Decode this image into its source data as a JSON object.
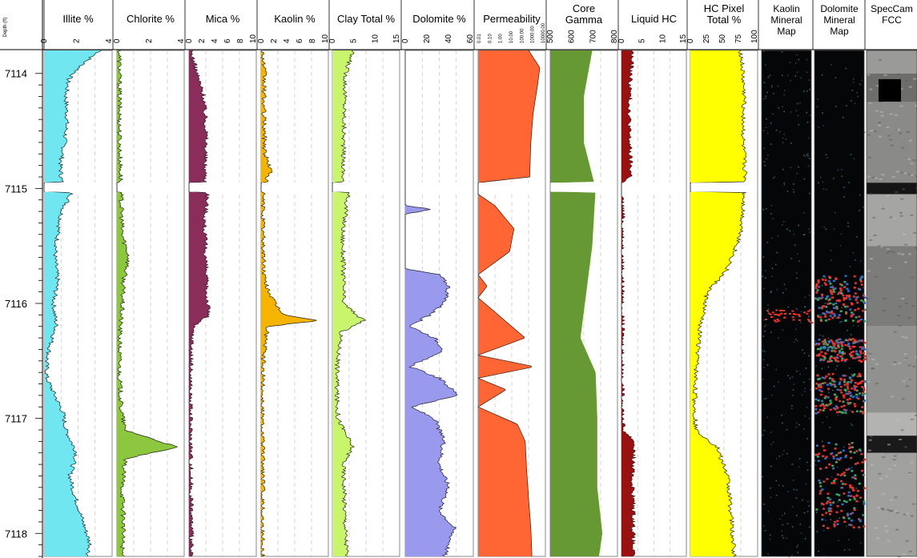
{
  "depth_axis": {
    "label": "Depth (ft)",
    "ticks": [
      7114,
      7115,
      7116,
      7117,
      7118
    ],
    "range": [
      7113.8,
      7118.2
    ],
    "gap": [
      7114.95,
      7115.03
    ]
  },
  "tracks": [
    {
      "id": "illite",
      "title": [
        "Illite %"
      ],
      "ticks": [
        "0",
        "2",
        "4"
      ],
      "range": [
        0,
        5
      ],
      "fill": "#6fe6f0",
      "profile": [
        [
          7113.8,
          4.2
        ],
        [
          7113.9,
          3.0
        ],
        [
          7114.05,
          1.8
        ],
        [
          7114.2,
          1.6
        ],
        [
          7114.4,
          1.7
        ],
        [
          7114.6,
          1.5
        ],
        [
          7114.8,
          1.2
        ],
        [
          7114.95,
          1.3
        ],
        [
          7115.05,
          2.0
        ],
        [
          7115.2,
          1.3
        ],
        [
          7115.4,
          1.0
        ],
        [
          7115.6,
          0.8
        ],
        [
          7115.8,
          1.0
        ],
        [
          7116.0,
          0.7
        ],
        [
          7116.2,
          0.9
        ],
        [
          7116.35,
          0.5
        ],
        [
          7116.5,
          0.2
        ],
        [
          7116.65,
          0.2
        ],
        [
          7116.8,
          0.8
        ],
        [
          7116.95,
          1.4
        ],
        [
          7117.1,
          1.6
        ],
        [
          7117.3,
          2.4
        ],
        [
          7117.5,
          1.9
        ],
        [
          7117.65,
          2.2
        ],
        [
          7117.8,
          2.6
        ],
        [
          7117.95,
          3.0
        ],
        [
          7118.1,
          3.4
        ],
        [
          7118.2,
          3.2
        ]
      ]
    },
    {
      "id": "chlorite",
      "title": [
        "Chlorite %"
      ],
      "ticks": [
        "0",
        "2",
        "4"
      ],
      "range": [
        0,
        5
      ],
      "fill": "#8dc63f",
      "profile": [
        [
          7113.8,
          0.2
        ],
        [
          7114.2,
          0.2
        ],
        [
          7114.6,
          0.2
        ],
        [
          7114.95,
          0.3
        ],
        [
          7115.05,
          0.3
        ],
        [
          7115.4,
          0.4
        ],
        [
          7115.6,
          0.9
        ],
        [
          7115.8,
          0.5
        ],
        [
          7116.0,
          0.4
        ],
        [
          7116.3,
          0.2
        ],
        [
          7116.6,
          0.2
        ],
        [
          7116.9,
          0.3
        ],
        [
          7117.1,
          0.6
        ],
        [
          7117.25,
          4.5
        ],
        [
          7117.35,
          0.6
        ],
        [
          7117.6,
          0.4
        ],
        [
          7117.9,
          0.5
        ],
        [
          7118.2,
          0.4
        ]
      ]
    },
    {
      "id": "mica",
      "title": [
        "Mica %"
      ],
      "ticks": [
        "0",
        "2",
        "4",
        "6",
        "8",
        "10"
      ],
      "range": [
        0,
        10
      ],
      "fill": "#8b2d5a",
      "profile": [
        [
          7113.8,
          0.3
        ],
        [
          7114.0,
          1.2
        ],
        [
          7114.2,
          2.2
        ],
        [
          7114.5,
          2.6
        ],
        [
          7114.8,
          2.4
        ],
        [
          7114.95,
          2.5
        ],
        [
          7115.05,
          2.8
        ],
        [
          7115.3,
          2.3
        ],
        [
          7115.6,
          2.5
        ],
        [
          7115.9,
          2.6
        ],
        [
          7116.1,
          3.0
        ],
        [
          7116.2,
          0.6
        ],
        [
          7116.5,
          0.3
        ],
        [
          7116.9,
          0.2
        ],
        [
          7117.2,
          0.3
        ],
        [
          7117.5,
          0.3
        ],
        [
          7117.9,
          0.4
        ],
        [
          7118.2,
          0.3
        ]
      ]
    },
    {
      "id": "kaolin",
      "title": [
        "Kaolin %"
      ],
      "ticks": [
        "0",
        "2",
        "4",
        "6",
        "8",
        "10"
      ],
      "range": [
        0,
        10
      ],
      "fill": "#f5b400",
      "profile": [
        [
          7113.8,
          0.2
        ],
        [
          7114.0,
          0.5
        ],
        [
          7114.3,
          0.4
        ],
        [
          7114.7,
          0.6
        ],
        [
          7114.85,
          1.5
        ],
        [
          7114.95,
          0.6
        ],
        [
          7115.05,
          0.3
        ],
        [
          7115.4,
          0.3
        ],
        [
          7115.8,
          0.5
        ],
        [
          7116.0,
          2.0
        ],
        [
          7116.1,
          3.5
        ],
        [
          7116.15,
          8.5
        ],
        [
          7116.2,
          1.0
        ],
        [
          7116.5,
          0.3
        ],
        [
          7117.0,
          0.2
        ],
        [
          7117.5,
          0.3
        ],
        [
          7118.2,
          0.2
        ]
      ]
    },
    {
      "id": "clay_total",
      "title": [
        "Clay Total %"
      ],
      "ticks": [
        "0",
        "5",
        "10",
        "15"
      ],
      "range": [
        0,
        15
      ],
      "fill": "#c8f56b",
      "profile": [
        [
          7113.8,
          4.5
        ],
        [
          7114.0,
          3.0
        ],
        [
          7114.3,
          2.7
        ],
        [
          7114.6,
          2.5
        ],
        [
          7114.95,
          2.4
        ],
        [
          7115.05,
          3.5
        ],
        [
          7115.4,
          2.3
        ],
        [
          7115.7,
          2.5
        ],
        [
          7116.0,
          2.5
        ],
        [
          7116.15,
          7.0
        ],
        [
          7116.25,
          2.0
        ],
        [
          7116.5,
          1.2
        ],
        [
          7116.8,
          1.0
        ],
        [
          7117.0,
          1.3
        ],
        [
          7117.25,
          4.5
        ],
        [
          7117.4,
          2.5
        ],
        [
          7117.7,
          2.7
        ],
        [
          7118.0,
          3.0
        ],
        [
          7118.2,
          3.3
        ]
      ]
    },
    {
      "id": "dolomite",
      "title": [
        "Dolomite %"
      ],
      "ticks": [
        "0",
        "20",
        "40",
        "60"
      ],
      "range": [
        0,
        70
      ],
      "fill": "#9999ee",
      "profile": [
        [
          7113.8,
          0
        ],
        [
          7115.15,
          0
        ],
        [
          7115.18,
          30
        ],
        [
          7115.22,
          0
        ],
        [
          7115.7,
          0
        ],
        [
          7115.75,
          35
        ],
        [
          7115.85,
          45
        ],
        [
          7116.0,
          40
        ],
        [
          7116.1,
          25
        ],
        [
          7116.2,
          5
        ],
        [
          7116.3,
          30
        ],
        [
          7116.4,
          40
        ],
        [
          7116.55,
          5
        ],
        [
          7116.65,
          35
        ],
        [
          7116.8,
          55
        ],
        [
          7116.9,
          5
        ],
        [
          7117.0,
          30
        ],
        [
          7117.2,
          40
        ],
        [
          7117.4,
          35
        ],
        [
          7117.6,
          45
        ],
        [
          7117.8,
          35
        ],
        [
          7117.95,
          50
        ],
        [
          7118.1,
          45
        ],
        [
          7118.2,
          40
        ]
      ]
    },
    {
      "id": "permeability",
      "title": [
        "Permeability"
      ],
      "ticks": [
        "0.01",
        "0.10",
        "1.00",
        "10.00",
        "100.00",
        "1000.00",
        "10000.00"
      ],
      "range": [
        -2,
        4
      ],
      "fill": "#ff6633",
      "profile": [
        [
          7113.8,
          2.5
        ],
        [
          7113.95,
          3.5
        ],
        [
          7114.1,
          3.3
        ],
        [
          7114.35,
          2.9
        ],
        [
          7114.6,
          2.7
        ],
        [
          7114.9,
          2.6
        ],
        [
          7114.95,
          -2
        ],
        [
          7115.05,
          -2
        ],
        [
          7115.15,
          -0.5
        ],
        [
          7115.35,
          1.2
        ],
        [
          7115.55,
          0.8
        ],
        [
          7115.75,
          -2
        ],
        [
          7115.85,
          -1.2
        ],
        [
          7115.95,
          -2
        ],
        [
          7116.2,
          1.0
        ],
        [
          7116.3,
          2.2
        ],
        [
          7116.45,
          -2
        ],
        [
          7116.55,
          3.0
        ],
        [
          7116.65,
          -2
        ],
        [
          7116.75,
          0.5
        ],
        [
          7116.9,
          -2
        ],
        [
          7117.05,
          1.5
        ],
        [
          7117.2,
          2.2
        ],
        [
          7117.4,
          2.3
        ],
        [
          7117.7,
          2.5
        ],
        [
          7117.95,
          2.7
        ],
        [
          7118.2,
          2.8
        ]
      ]
    },
    {
      "id": "core_gamma",
      "title": [
        "Core",
        "Gamma"
      ],
      "ticks": [
        "500",
        "600",
        "700",
        "800"
      ],
      "range": [
        450,
        850
      ],
      "fill": "#669933",
      "profile": [
        [
          7113.8,
          700
        ],
        [
          7114.2,
          650
        ],
        [
          7114.6,
          650
        ],
        [
          7115.0,
          720
        ],
        [
          7115.5,
          700
        ],
        [
          7116.3,
          630
        ],
        [
          7116.6,
          720
        ],
        [
          7117.0,
          730
        ],
        [
          7117.6,
          730
        ],
        [
          7118.0,
          760
        ],
        [
          7118.2,
          740
        ]
      ]
    },
    {
      "id": "liquid_hc",
      "title": [
        "Liquid HC"
      ],
      "ticks": [
        "0",
        "5",
        "10",
        "15"
      ],
      "range": [
        0,
        15
      ],
      "fill": "#991111",
      "profile": [
        [
          7113.8,
          2.5
        ],
        [
          7114.1,
          2.0
        ],
        [
          7114.5,
          1.8
        ],
        [
          7114.9,
          2.2
        ],
        [
          7114.95,
          0
        ],
        [
          7115.05,
          0
        ],
        [
          7115.2,
          0.3
        ],
        [
          7115.6,
          0.2
        ],
        [
          7116.2,
          0.2
        ],
        [
          7116.8,
          0.2
        ],
        [
          7117.1,
          0.4
        ],
        [
          7117.2,
          3.0
        ],
        [
          7117.5,
          2.5
        ],
        [
          7117.8,
          2.8
        ],
        [
          7118.2,
          2.6
        ]
      ]
    },
    {
      "id": "hc_pixel",
      "title": [
        "HC Pixel",
        "Total %"
      ],
      "ticks": [
        "0",
        "25",
        "50",
        "75",
        "100"
      ],
      "range": [
        0,
        100
      ],
      "fill": "#ffff00",
      "profile": [
        [
          7113.8,
          75
        ],
        [
          7114.2,
          80
        ],
        [
          7114.6,
          78
        ],
        [
          7114.95,
          82
        ],
        [
          7115.05,
          80
        ],
        [
          7115.4,
          75
        ],
        [
          7115.7,
          55
        ],
        [
          7115.9,
          25
        ],
        [
          7116.2,
          15
        ],
        [
          7116.6,
          8
        ],
        [
          7116.9,
          6
        ],
        [
          7117.1,
          8
        ],
        [
          7117.25,
          40
        ],
        [
          7117.5,
          55
        ],
        [
          7117.8,
          60
        ],
        [
          7118.2,
          65
        ]
      ]
    }
  ],
  "image_tracks": [
    {
      "id": "kaolin_map",
      "title": [
        "Kaolin",
        "Mineral",
        "Map"
      ]
    },
    {
      "id": "dolomite_map",
      "title": [
        "Dolomite",
        "Mineral",
        "Map"
      ]
    },
    {
      "id": "specgam_fcc",
      "title": [
        "SpecCam",
        "FCC"
      ]
    }
  ]
}
